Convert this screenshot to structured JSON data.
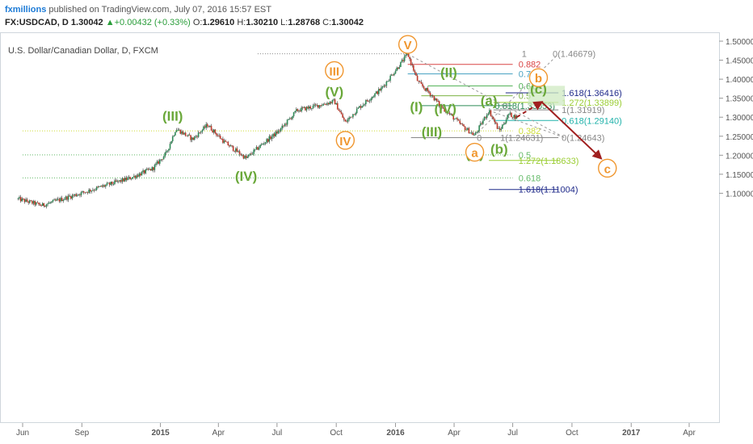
{
  "header": {
    "publisher": "fxmillions",
    "published_text": "published on TradingView.com, July 07, 2016 15:57 EST",
    "symbol": "FX:USDCAD, D",
    "last": "1.30042",
    "change": "+0.00432 (+0.33%)",
    "ohlc": [
      {
        "k": "O:",
        "v": "1.29610"
      },
      {
        "k": "H:",
        "v": "1.30210"
      },
      {
        "k": "L:",
        "v": "1.28768"
      },
      {
        "k": "C:",
        "v": "1.30042"
      }
    ]
  },
  "colors": {
    "green_wave": "#6aa83a",
    "orange_wave": "#f0962e",
    "target_arrow": "#a01f1f",
    "zone_fill": "#cfe9c2",
    "up": "#2e8b57",
    "down": "#c0392b"
  },
  "chart_data": {
    "type": "candlestick",
    "title": "U.S. Dollar/Canadian Dollar, D, FXCM",
    "xlabel": "",
    "ylabel": "",
    "ylim": [
      1.09,
      1.5
    ],
    "grid": false,
    "x_ticks": [
      {
        "label": "Jun",
        "date": "2014-06"
      },
      {
        "label": "Sep",
        "date": "2014-09"
      },
      {
        "label": "2015",
        "date": "2015-01"
      },
      {
        "label": "Apr",
        "date": "2015-04"
      },
      {
        "label": "Jul",
        "date": "2015-07"
      },
      {
        "label": "Oct",
        "date": "2015-10"
      },
      {
        "label": "2016",
        "date": "2016-01"
      },
      {
        "label": "Apr",
        "date": "2016-04"
      },
      {
        "label": "Jul",
        "date": "2016-07"
      },
      {
        "label": "Oct",
        "date": "2016-10"
      },
      {
        "label": "2017",
        "date": "2017-01"
      },
      {
        "label": "Apr",
        "date": "2017-04"
      }
    ],
    "y_ticks": [
      "1.50000",
      "1.45000",
      "1.40000",
      "1.35000",
      "1.30000",
      "1.25000",
      "1.20000",
      "1.15000",
      "1.10000"
    ],
    "price_path": [
      [
        "2014-05-25",
        1.085
      ],
      [
        "2014-07-01",
        1.068
      ],
      [
        "2014-08-15",
        1.092
      ],
      [
        "2014-10-01",
        1.117
      ],
      [
        "2014-11-15",
        1.14
      ],
      [
        "2014-12-20",
        1.165
      ],
      [
        "2015-01-10",
        1.205
      ],
      [
        "2015-01-25",
        1.27
      ],
      [
        "2015-02-20",
        1.242
      ],
      [
        "2015-03-15",
        1.28
      ],
      [
        "2015-04-10",
        1.235
      ],
      [
        "2015-05-14",
        1.192
      ],
      [
        "2015-06-10",
        1.232
      ],
      [
        "2015-07-05",
        1.265
      ],
      [
        "2015-08-01",
        1.318
      ],
      [
        "2015-09-01",
        1.33
      ],
      [
        "2015-09-28",
        1.342
      ],
      [
        "2015-10-15",
        1.286
      ],
      [
        "2015-11-05",
        1.325
      ],
      [
        "2015-12-10",
        1.375
      ],
      [
        "2016-01-20",
        1.466
      ],
      [
        "2016-02-05",
        1.392
      ],
      [
        "2016-02-25",
        1.36
      ],
      [
        "2016-03-10",
        1.331
      ],
      [
        "2016-03-25",
        1.308
      ],
      [
        "2016-04-15",
        1.275
      ],
      [
        "2016-05-03",
        1.252
      ],
      [
        "2016-05-25",
        1.318
      ],
      [
        "2016-06-10",
        1.263
      ],
      [
        "2016-06-25",
        1.308
      ],
      [
        "2016-07-07",
        1.3
      ]
    ],
    "wave_labels": [
      {
        "text": "(III)",
        "date": "2015-01-20",
        "price": 1.278,
        "color": "green",
        "pos": "above"
      },
      {
        "text": "(IV)",
        "date": "2015-05-14",
        "price": 1.192,
        "color": "green",
        "pos": "below"
      },
      {
        "text": "(V)",
        "date": "2015-09-28",
        "price": 1.342,
        "color": "green",
        "pos": "above"
      },
      {
        "text": "III",
        "date": "2015-09-28",
        "price": 1.342,
        "color": "orange",
        "pos": "above2",
        "circle": true
      },
      {
        "text": "IV",
        "date": "2015-10-15",
        "price": 1.286,
        "color": "orange",
        "pos": "below",
        "circle": true
      },
      {
        "text": "V",
        "date": "2016-01-20",
        "price": 1.466,
        "color": "orange",
        "pos": "above",
        "circle": true
      },
      {
        "text": "(I)",
        "date": "2016-02-05",
        "price": 1.392,
        "color": "green",
        "pos": "belowleft"
      },
      {
        "text": "(II)",
        "date": "2016-02-25",
        "price": 1.405,
        "color": "green",
        "pos": "right"
      },
      {
        "text": "(III)",
        "date": "2016-03-25",
        "price": 1.275,
        "color": "green",
        "pos": "left"
      },
      {
        "text": "(IV)",
        "date": "2016-04-15",
        "price": 1.335,
        "color": "green",
        "pos": "left"
      },
      {
        "text": "(V)",
        "date": "2016-05-03",
        "price": 1.252,
        "color": "green",
        "pos": "below"
      },
      {
        "text": "a",
        "date": "2016-05-03",
        "price": 1.208,
        "color": "orange",
        "pos": "center",
        "circle": true
      },
      {
        "text": "(a)",
        "date": "2016-05-25",
        "price": 1.318,
        "color": "green",
        "pos": "above"
      },
      {
        "text": "(b)",
        "date": "2016-06-10",
        "price": 1.263,
        "color": "green",
        "pos": "below"
      },
      {
        "text": "(c)",
        "date": "2016-08-10",
        "price": 1.375,
        "color": "green",
        "pos": "center"
      },
      {
        "text": "b",
        "date": "2016-08-10",
        "price": 1.404,
        "color": "orange",
        "pos": "center",
        "circle": true
      },
      {
        "text": "c",
        "date": "2016-11-25",
        "price": 1.166,
        "color": "orange",
        "pos": "center",
        "circle": true
      }
    ],
    "fib_levels": [
      {
        "ratio": "1",
        "value": "1.46679",
        "label": "1",
        "price_label": "0(1.46679)",
        "price": 1.4668,
        "color": "#888888"
      },
      {
        "ratio": "0.882",
        "label": "0.882",
        "price": 1.439,
        "color": "#d94545"
      },
      {
        "ratio": "0.764",
        "label": "0.764",
        "price": 1.414,
        "color": "#4aa3c2"
      },
      {
        "ratio": "0.618",
        "label": "0.618",
        "price": 1.3825,
        "color": "#4caf50"
      },
      {
        "ratio": "0.5",
        "label": "0.5",
        "price": 1.3565,
        "color": "#7cb342"
      },
      {
        "ratio": "1.618",
        "label": "1.618(1.36416)",
        "price": 1.3642,
        "color": "#1f2a8a"
      },
      {
        "ratio": "1.272",
        "label": "1.272(1.33899)",
        "price": 1.339,
        "color": "#9acd32"
      },
      {
        "ratio": "0.618",
        "label": "0.618(1.33053)",
        "price": 1.3305,
        "color": "#2e8b57"
      },
      {
        "ratio": "1",
        "label": "1(1.31919)",
        "price": 1.3192,
        "color": "#888888"
      },
      {
        "ratio": "0.618",
        "label": "0.618(1.29140)",
        "price": 1.2914,
        "color": "#20b2aa"
      },
      {
        "ratio": "0.382",
        "label": "0.382",
        "price": 1.264,
        "color": "#cddc39"
      },
      {
        "ratio": "0",
        "label": "0",
        "price": 1.2463,
        "color": "#888888"
      },
      {
        "ratio": "1",
        "label": "1(1.24631)",
        "price": 1.2463,
        "color": "#888888"
      },
      {
        "ratio": "0",
        "label": "0(1.24643)",
        "price": 1.2464,
        "color": "#888888"
      },
      {
        "ratio": "0.5",
        "label": "0.5",
        "price": 1.201,
        "color": "#66bb6a"
      },
      {
        "ratio": "1.272",
        "label": "1.272(1.18633)",
        "price": 1.1863,
        "color": "#9acd32"
      },
      {
        "ratio": "0.618",
        "label": "0.618",
        "price": 1.1405,
        "color": "#66bb6a"
      },
      {
        "ratio": "1.618",
        "label": "1.618(1.11004)",
        "price": 1.11,
        "color": "#1f2a8a"
      }
    ],
    "target_zone": {
      "from_date": "2016-07-25",
      "to_date": "2016-09-20",
      "low": 1.3305,
      "high": 1.3825
    },
    "forecast_path": [
      [
        "2016-07-07",
        1.3
      ],
      [
        "2016-08-15",
        1.34
      ],
      [
        "2016-11-15",
        1.192
      ]
    ]
  }
}
